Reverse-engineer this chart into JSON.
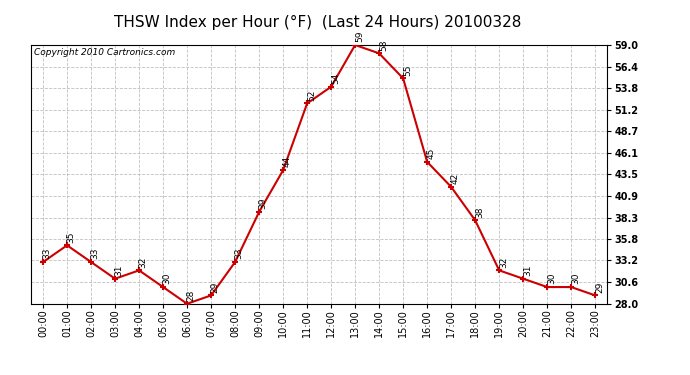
{
  "title": "THSW Index per Hour (°F)  (Last 24 Hours) 20100328",
  "copyright": "Copyright 2010 Cartronics.com",
  "hours": [
    "00:00",
    "01:00",
    "02:00",
    "03:00",
    "04:00",
    "05:00",
    "06:00",
    "07:00",
    "08:00",
    "09:00",
    "10:00",
    "11:00",
    "12:00",
    "13:00",
    "14:00",
    "15:00",
    "16:00",
    "17:00",
    "18:00",
    "19:00",
    "20:00",
    "21:00",
    "22:00",
    "23:00"
  ],
  "values": [
    33,
    35,
    33,
    31,
    32,
    30,
    28,
    29,
    33,
    39,
    44,
    52,
    54,
    59,
    58,
    55,
    45,
    42,
    38,
    32,
    31,
    30,
    30,
    29
  ],
  "line_color": "#cc0000",
  "marker_color": "#cc0000",
  "bg_color": "#ffffff",
  "grid_color": "#b0b0b0",
  "ylim_min": 28.0,
  "ylim_max": 59.0,
  "yticks": [
    28.0,
    30.6,
    33.2,
    35.8,
    38.3,
    40.9,
    43.5,
    46.1,
    48.7,
    51.2,
    53.8,
    56.4,
    59.0
  ],
  "title_fontsize": 11,
  "label_fontsize": 6.5,
  "tick_fontsize": 7,
  "copyright_fontsize": 6.5
}
